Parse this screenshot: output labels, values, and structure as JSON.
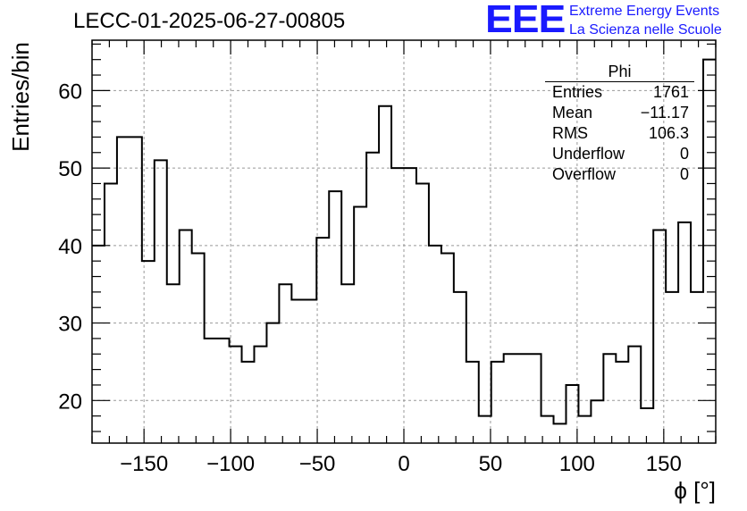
{
  "header": {
    "title": "LECC-01-2025-06-27-00805",
    "logo": "EEE",
    "logo_line1": "Extreme Energy Events",
    "logo_line2": "La Scienza nelle Scuole"
  },
  "stats_box": {
    "name": "Phi",
    "rows": [
      {
        "label": "Entries",
        "value": "1761"
      },
      {
        "label": "Mean",
        "value": "−11.17"
      },
      {
        "label": "RMS",
        "value": "106.3"
      },
      {
        "label": "Underflow",
        "value": "0"
      },
      {
        "label": "Overflow",
        "value": "0"
      }
    ]
  },
  "colors": {
    "line": "#000000",
    "grid": "#999999",
    "logo": "#1a1aff"
  },
  "chart_data": {
    "type": "histogram",
    "title": "LECC-01-2025-06-27-00805",
    "xlabel": "ϕ [°]",
    "ylabel": "Entries/bin",
    "xlim": [
      -180,
      180
    ],
    "ylim": [
      14.5,
      66.5
    ],
    "xticks": [
      -150,
      -100,
      -50,
      0,
      50,
      100,
      150
    ],
    "xtick_labels": [
      "−150",
      "−100",
      "−50",
      "0",
      "50",
      "100",
      "150"
    ],
    "yticks": [
      20,
      30,
      40,
      50,
      60
    ],
    "ytick_labels": [
      "20",
      "30",
      "40",
      "50",
      "60"
    ],
    "grid": true,
    "legend": "top-right stats box",
    "bin_width": 7.2,
    "bin_start": -180,
    "values": [
      40,
      48,
      54,
      54,
      38,
      51,
      35,
      42,
      39,
      28,
      28,
      27,
      25,
      27,
      30,
      35,
      33,
      33,
      41,
      47,
      35,
      45,
      52,
      58,
      50,
      50,
      48,
      40,
      39,
      34,
      25,
      18,
      25,
      26,
      26,
      26,
      18,
      17,
      22,
      18,
      20,
      26,
      25,
      27,
      19,
      42,
      34,
      43,
      34,
      64
    ]
  }
}
